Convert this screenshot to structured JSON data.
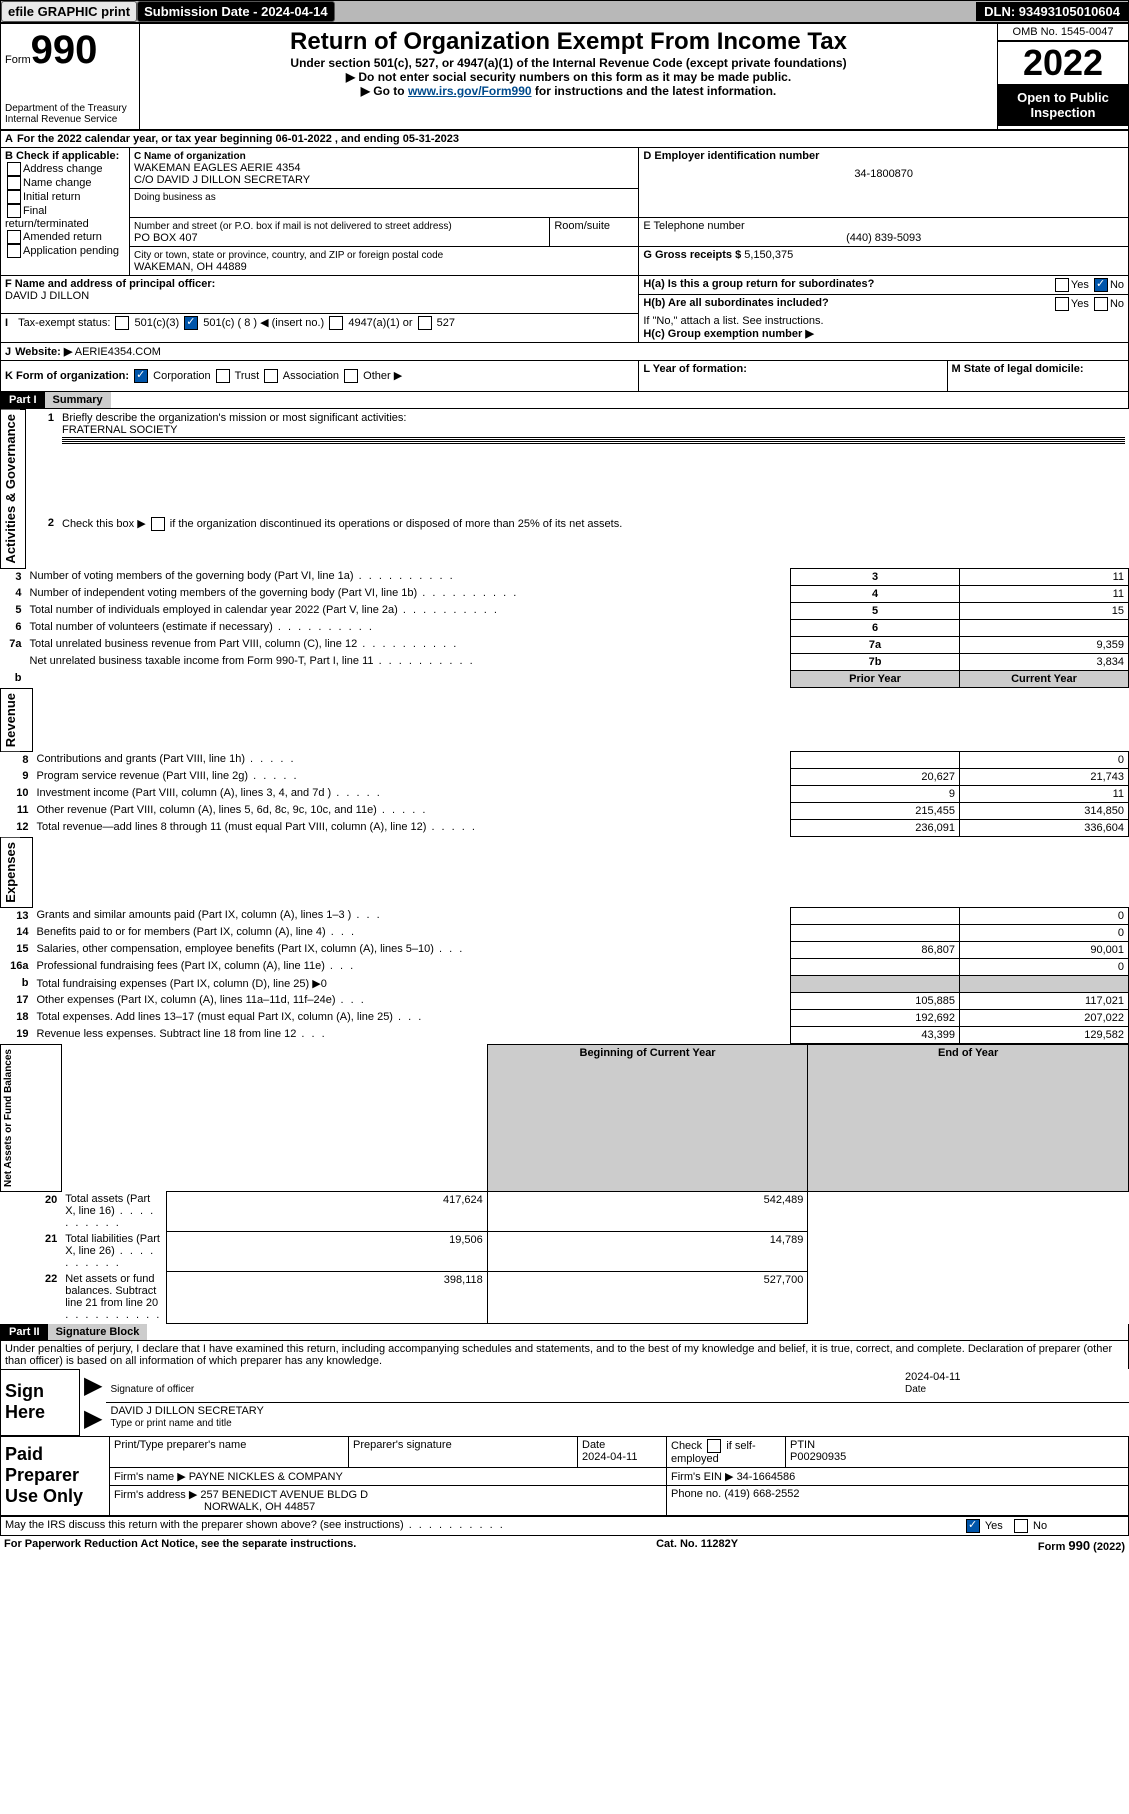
{
  "topbar": {
    "efile": "efile GRAPHIC print",
    "submission": "Submission Date - 2024-04-14",
    "dln": "DLN: 93493105010604"
  },
  "header": {
    "form_label": "Form",
    "form_number": "990",
    "dept": "Department of the Treasury",
    "irs": "Internal Revenue Service",
    "title": "Return of Organization Exempt From Income Tax",
    "subtitle": "Under section 501(c), 527, or 4947(a)(1) of the Internal Revenue Code (except private foundations)",
    "note1": "▶ Do not enter social security numbers on this form as it may be made public.",
    "note2_pre": "▶ Go to ",
    "note2_link": "www.irs.gov/Form990",
    "note2_post": " for instructions and the latest information.",
    "omb": "OMB No. 1545-0047",
    "year": "2022",
    "inspect": "Open to Public Inspection"
  },
  "secA": {
    "rowA": "For the 2022 calendar year, or tax year beginning 06-01-2022    , and ending 05-31-2023",
    "B_label": "B Check if applicable:",
    "B_opts": [
      "Address change",
      "Name change",
      "Initial return",
      "Final return/terminated",
      "Amended return",
      "Application pending"
    ],
    "C_label": "C Name of organization",
    "C_name1": "WAKEMAN EAGLES AERIE 4354",
    "C_name2": "C/O DAVID J DILLON SECRETARY",
    "dba": "Doing business as",
    "addr_label": "Number and street (or P.O. box if mail is not delivered to street address)",
    "room": "Room/suite",
    "addr": "PO BOX 407",
    "city_label": "City or town, state or province, country, and ZIP or foreign postal code",
    "city": "WAKEMAN, OH  44889",
    "D_label": "D Employer identification number",
    "D_val": "34-1800870",
    "E_label": "E Telephone number",
    "E_val": "(440) 839-5093",
    "G_label": "G Gross receipts $",
    "G_val": "5,150,375",
    "F_label": "F  Name and address of principal officer:",
    "F_val": "DAVID J DILLON",
    "Ha": "H(a)  Is this a group return for subordinates?",
    "Hb": "H(b)  Are all subordinates included?",
    "Hb_note": "If \"No,\" attach a list. See instructions.",
    "Hc": "H(c)  Group exemption number ▶",
    "yes": "Yes",
    "no": "No",
    "I_label": "Tax-exempt status:",
    "I_501c3": "501(c)(3)",
    "I_501c": "501(c) ( 8 ) ◀ (insert no.)",
    "I_4947": "4947(a)(1) or",
    "I_527": "527",
    "J_label": "Website: ▶",
    "J_val": "AERIE4354.COM",
    "K_label": "K Form of organization:",
    "K_opts": [
      "Corporation",
      "Trust",
      "Association",
      "Other ▶"
    ],
    "L_label": "L Year of formation:",
    "M_label": "M State of legal domicile:"
  },
  "part1": {
    "hdr": "Part I",
    "title": "Summary",
    "q1": "Briefly describe the organization's mission or most significant activities:",
    "q1_val": "FRATERNAL SOCIETY",
    "q2": "Check this box ▶",
    "q2_post": "if the organization discontinued its operations or disposed of more than 25% of its net assets.",
    "rows_gov": [
      {
        "n": "3",
        "label": "Number of voting members of the governing body (Part VI, line 1a)",
        "box": "3",
        "val": "11"
      },
      {
        "n": "4",
        "label": "Number of independent voting members of the governing body (Part VI, line 1b)",
        "box": "4",
        "val": "11"
      },
      {
        "n": "5",
        "label": "Total number of individuals employed in calendar year 2022 (Part V, line 2a)",
        "box": "5",
        "val": "15"
      },
      {
        "n": "6",
        "label": "Total number of volunteers (estimate if necessary)",
        "box": "6",
        "val": ""
      },
      {
        "n": "7a",
        "label": "Total unrelated business revenue from Part VIII, column (C), line 12",
        "box": "7a",
        "val": "9,359"
      },
      {
        "n": "",
        "label": "Net unrelated business taxable income from Form 990-T, Part I, line 11",
        "box": "7b",
        "val": "3,834"
      }
    ],
    "col_prior": "Prior Year",
    "col_current": "Current Year",
    "rows_rev": [
      {
        "n": "8",
        "label": "Contributions and grants (Part VIII, line 1h)",
        "p": "",
        "c": "0"
      },
      {
        "n": "9",
        "label": "Program service revenue (Part VIII, line 2g)",
        "p": "20,627",
        "c": "21,743"
      },
      {
        "n": "10",
        "label": "Investment income (Part VIII, column (A), lines 3, 4, and 7d )",
        "p": "9",
        "c": "11"
      },
      {
        "n": "11",
        "label": "Other revenue (Part VIII, column (A), lines 5, 6d, 8c, 9c, 10c, and 11e)",
        "p": "215,455",
        "c": "314,850"
      },
      {
        "n": "12",
        "label": "Total revenue—add lines 8 through 11 (must equal Part VIII, column (A), line 12)",
        "p": "236,091",
        "c": "336,604"
      }
    ],
    "rows_exp": [
      {
        "n": "13",
        "label": "Grants and similar amounts paid (Part IX, column (A), lines 1–3 )",
        "p": "",
        "c": "0"
      },
      {
        "n": "14",
        "label": "Benefits paid to or for members (Part IX, column (A), line 4)",
        "p": "",
        "c": "0"
      },
      {
        "n": "15",
        "label": "Salaries, other compensation, employee benefits (Part IX, column (A), lines 5–10)",
        "p": "86,807",
        "c": "90,001"
      },
      {
        "n": "16a",
        "label": "Professional fundraising fees (Part IX, column (A), line 11e)",
        "p": "",
        "c": "0"
      },
      {
        "n": "b",
        "label": "Total fundraising expenses (Part IX, column (D), line 25) ▶0",
        "p": null,
        "c": null
      },
      {
        "n": "17",
        "label": "Other expenses (Part IX, column (A), lines 11a–11d, 11f–24e)",
        "p": "105,885",
        "c": "117,021"
      },
      {
        "n": "18",
        "label": "Total expenses. Add lines 13–17 (must equal Part IX, column (A), line 25)",
        "p": "192,692",
        "c": "207,022"
      },
      {
        "n": "19",
        "label": "Revenue less expenses. Subtract line 18 from line 12",
        "p": "43,399",
        "c": "129,582"
      }
    ],
    "col_begin": "Beginning of Current Year",
    "col_end": "End of Year",
    "rows_net": [
      {
        "n": "20",
        "label": "Total assets (Part X, line 16)",
        "p": "417,624",
        "c": "542,489"
      },
      {
        "n": "21",
        "label": "Total liabilities (Part X, line 26)",
        "p": "19,506",
        "c": "14,789"
      },
      {
        "n": "22",
        "label": "Net assets or fund balances. Subtract line 21 from line 20",
        "p": "398,118",
        "c": "527,700"
      }
    ],
    "vlabels": {
      "gov": "Activities & Governance",
      "rev": "Revenue",
      "exp": "Expenses",
      "net": "Net Assets or Fund Balances"
    }
  },
  "part2": {
    "hdr": "Part II",
    "title": "Signature Block",
    "decl": "Under penalties of perjury, I declare that I have examined this return, including accompanying schedules and statements, and to the best of my knowledge and belief, it is true, correct, and complete. Declaration of preparer (other than officer) is based on all information of which preparer has any knowledge.",
    "sign_here": "Sign Here",
    "sig_off": "Signature of officer",
    "sig_date": "Date",
    "sig_date_val": "2024-04-11",
    "sig_name": "DAVID J DILLON  SECRETARY",
    "sig_name_label": "Type or print name and title",
    "paid": "Paid Preparer Use Only",
    "prep_name_label": "Print/Type preparer's name",
    "prep_sig_label": "Preparer's signature",
    "prep_date_label": "Date",
    "prep_date_val": "2024-04-11",
    "prep_check": "Check",
    "prep_self": "if self-employed",
    "ptin_label": "PTIN",
    "ptin": "P00290935",
    "firm_name_label": "Firm's name    ▶",
    "firm_name": "PAYNE NICKLES & COMPANY",
    "firm_ein_label": "Firm's EIN ▶",
    "firm_ein": "34-1664586",
    "firm_addr_label": "Firm's address ▶",
    "firm_addr1": "257 BENEDICT AVENUE BLDG D",
    "firm_addr2": "NORWALK, OH  44857",
    "firm_phone_label": "Phone no.",
    "firm_phone": "(419) 668-2552",
    "may_irs": "May the IRS discuss this return with the preparer shown above? (see instructions)"
  },
  "footer": {
    "paperwork": "For Paperwork Reduction Act Notice, see the separate instructions.",
    "cat": "Cat. No. 11282Y",
    "form": "Form 990 (2022)"
  }
}
